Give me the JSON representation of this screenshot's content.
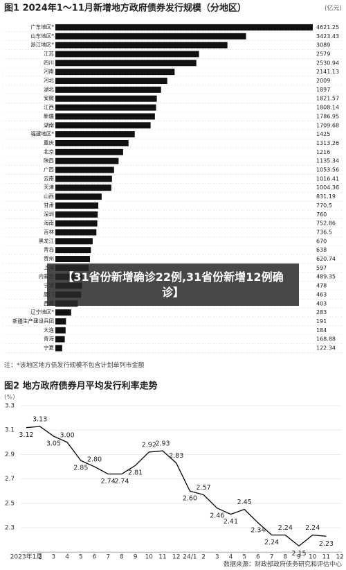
{
  "chart_data": [
    {
      "type": "barh",
      "title": "图1 2024年1～11月新增地方政府债券发行规模（分地区）",
      "unit": "(亿元)",
      "categories": [
        "广东地区*",
        "山东地区*",
        "浙江地区*",
        "江苏",
        "四川",
        "河南",
        "河北",
        "湖北",
        "安徽",
        "江西",
        "新疆",
        "湖南",
        "福建地区*",
        "重庆",
        "北京",
        "陕西",
        "广西",
        "云南",
        "天津",
        "山西",
        "甘肃",
        "深圳",
        "海南",
        "吉林",
        "黑龙江",
        "青岛",
        "贵州",
        "上海",
        "内蒙古",
        "宁波",
        "厦门",
        "西藏",
        "辽宁地区*",
        "新疆生产建设兵团",
        "大连",
        "青海",
        "宁夏"
      ],
      "values": [
        4621.25,
        3423.43,
        3089,
        2579,
        2530.94,
        2141.13,
        2009,
        1897,
        1821.57,
        1808.14,
        1786.95,
        1709.68,
        1425,
        1313.26,
        1216,
        1135.34,
        1053.56,
        1016.41,
        1004.36,
        831.19,
        770.5,
        760,
        752.86,
        736.5,
        670,
        638,
        620.74,
        597,
        489.35,
        478,
        463,
        403,
        283,
        191,
        184,
        168.88,
        122.34
      ],
      "color": "#111111",
      "note": "注：*该地区地方债发行规模不包含计划单列市金额"
    },
    {
      "type": "line",
      "title": "图2 地方政府债券月平均发行利率走势",
      "unit": "(%)",
      "categories": [
        "2023年1月",
        "2",
        "3",
        "4",
        "5",
        "6",
        "7",
        "8",
        "9",
        "10",
        "11",
        "12",
        "24/1",
        "2",
        "3",
        "4",
        "5",
        "6",
        "7",
        "8",
        "9",
        "10",
        "11",
        "12"
      ],
      "values": [
        3.12,
        3.13,
        3.05,
        3.0,
        2.85,
        2.8,
        2.74,
        2.74,
        2.81,
        2.92,
        2.93,
        2.83,
        2.6,
        2.57,
        2.46,
        2.41,
        2.45,
        2.34,
        2.24,
        2.24,
        2.15,
        2.24,
        2.23,
        null
      ],
      "value_labels": [
        "3.12",
        "3.13",
        "3.05",
        "3.00",
        "2.85",
        "2.80",
        "2.74",
        "2.74",
        "2.81",
        "2.92",
        "2.93",
        "2.83",
        "2.60",
        "2.57",
        "2.46",
        "2.41",
        "2.45",
        "2.34",
        "2.24",
        "2.24",
        "2.15",
        "2.24",
        "2.23",
        null
      ],
      "color": "#111111",
      "ylim": [
        2.1,
        3.3
      ],
      "yticks": [
        3.3,
        3.1,
        2.9,
        2.7,
        2.5,
        2.3
      ],
      "grid": true,
      "source": "数据来源：财政部政府债务研究和评估中心"
    }
  ],
  "overlay_text": "【31省份新增确诊22例,31省份新增12例确诊】"
}
